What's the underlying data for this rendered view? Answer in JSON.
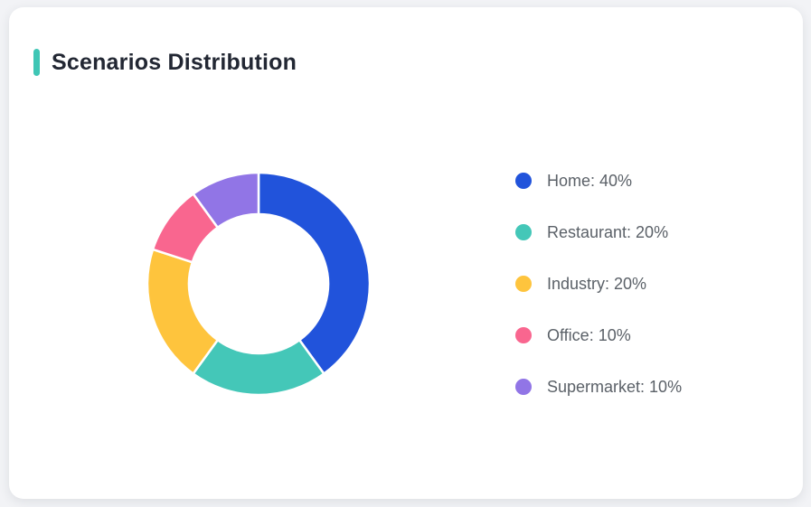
{
  "page": {
    "background_color": "#f2f3f6",
    "card_background_color": "#ffffff"
  },
  "header": {
    "title": "Scenarios Distribution",
    "accent_color": "#3fc6b5",
    "title_color": "#222733"
  },
  "chart_data": {
    "type": "pie",
    "subtype": "donut",
    "title": "Scenarios Distribution",
    "legend_position": "right",
    "direction": "clockwise",
    "start_angle_deg": 0,
    "inner_radius_ratio": 0.63,
    "slice_gap_color": "#ffffff",
    "categories": [
      "Home",
      "Restaurant",
      "Industry",
      "Office",
      "Supermarket"
    ],
    "values": [
      40,
      20,
      20,
      10,
      10
    ],
    "segments": [
      {
        "label": "Home",
        "value": 40,
        "color": "#2153db",
        "legend_text": "Home: 40%"
      },
      {
        "label": "Restaurant",
        "value": 20,
        "color": "#44c7b8",
        "legend_text": "Restaurant: 20%"
      },
      {
        "label": "Industry",
        "value": 20,
        "color": "#fec43d",
        "legend_text": "Industry: 20%"
      },
      {
        "label": "Office",
        "value": 10,
        "color": "#f9668f",
        "legend_text": "Office: 10%"
      },
      {
        "label": "Supermarket",
        "value": 10,
        "color": "#9175e6",
        "legend_text": "Supermarket: 10%"
      }
    ]
  }
}
